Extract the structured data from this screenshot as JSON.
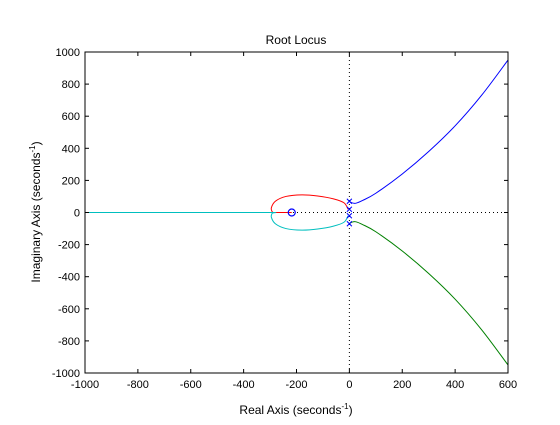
{
  "chart_data": {
    "type": "line",
    "title": "Root Locus",
    "xlabel": {
      "text": "Real Axis (seconds",
      "sup": "-1",
      "close": ")"
    },
    "ylabel": {
      "text": "Imaginary Axis (seconds",
      "sup": "-1",
      "close": ")"
    },
    "xlim": [
      -1000,
      600
    ],
    "ylim": [
      -1000,
      1000
    ],
    "xticks": [
      -1000,
      -800,
      -600,
      -400,
      -200,
      0,
      200,
      400,
      600
    ],
    "yticks": [
      -1000,
      -800,
      -600,
      -400,
      -200,
      0,
      200,
      400,
      600,
      800,
      1000
    ],
    "xtick_labels": [
      "-1000",
      "-800",
      "-600",
      "-400",
      "-200",
      "0",
      "200",
      "400",
      "600"
    ],
    "ytick_labels": [
      "-1000",
      "-800",
      "-600",
      "-400",
      "-200",
      "0",
      "200",
      "400",
      "600",
      "800",
      "1000"
    ],
    "grid": false,
    "reference_lines": {
      "x": 0,
      "y": 0,
      "style": "dotted"
    },
    "series": [
      {
        "color": "#0000ff",
        "points": [
          [
            0,
            70
          ],
          [
            10,
            60
          ],
          [
            25,
            58
          ],
          [
            50,
            75
          ],
          [
            100,
            120
          ],
          [
            200,
            240
          ],
          [
            300,
            380
          ],
          [
            400,
            540
          ],
          [
            500,
            730
          ],
          [
            600,
            950
          ]
        ]
      },
      {
        "color": "#008000",
        "points": [
          [
            0,
            -70
          ],
          [
            10,
            -60
          ],
          [
            25,
            -58
          ],
          [
            50,
            -75
          ],
          [
            100,
            -120
          ],
          [
            200,
            -240
          ],
          [
            300,
            -380
          ],
          [
            400,
            -540
          ],
          [
            500,
            -730
          ],
          [
            600,
            -950
          ]
        ]
      },
      {
        "color": "#ff0000",
        "points": [
          [
            -5,
            20
          ],
          [
            -20,
            60
          ],
          [
            -60,
            85
          ],
          [
            -120,
            103
          ],
          [
            -180,
            110
          ],
          [
            -240,
            100
          ],
          [
            -280,
            70
          ],
          [
            -295,
            30
          ],
          [
            -292,
            5
          ],
          [
            -285,
            0
          ],
          [
            -260,
            0
          ],
          [
            -218,
            0
          ]
        ]
      },
      {
        "color": "#00bfbf",
        "points": [
          [
            -5,
            -20
          ],
          [
            -20,
            -60
          ],
          [
            -60,
            -85
          ],
          [
            -120,
            -103
          ],
          [
            -180,
            -110
          ],
          [
            -240,
            -100
          ],
          [
            -280,
            -70
          ],
          [
            -295,
            -30
          ],
          [
            -292,
            -5
          ],
          [
            -285,
            0
          ],
          [
            -400,
            0
          ],
          [
            -600,
            0
          ],
          [
            -800,
            0
          ],
          [
            -1000,
            0
          ]
        ]
      }
    ],
    "poles": [
      [
        0,
        70
      ],
      [
        0,
        20
      ],
      [
        0,
        -20
      ],
      [
        0,
        -70
      ]
    ],
    "zeros": [
      [
        -218,
        0
      ]
    ],
    "marker_color": "#0000ff"
  }
}
